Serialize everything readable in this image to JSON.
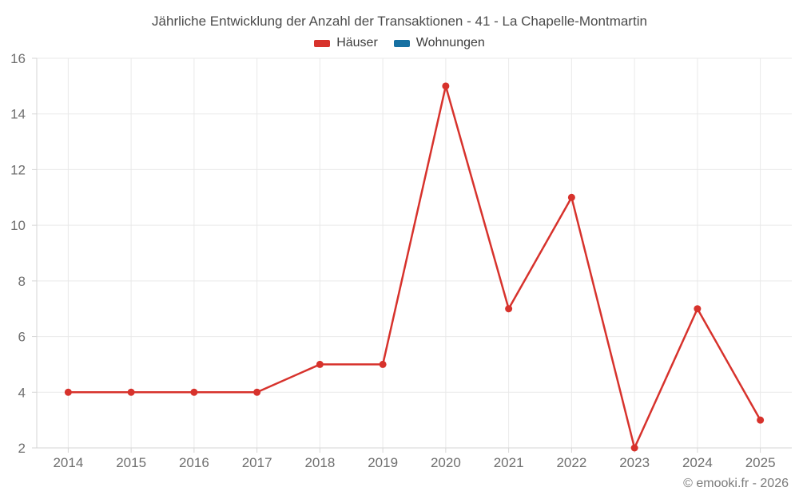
{
  "footer": "© emooki.fr - 2026",
  "chart_data": {
    "type": "line",
    "title": "Jährliche Entwicklung der Anzahl der Transaktionen - 41 - La Chapelle-Montmartin",
    "categories": [
      "2014",
      "2015",
      "2016",
      "2017",
      "2018",
      "2019",
      "2020",
      "2021",
      "2022",
      "2023",
      "2024",
      "2025"
    ],
    "series": [
      {
        "name": "Häuser",
        "color": "#d7322c",
        "values": [
          4,
          4,
          4,
          4,
          5,
          5,
          15,
          7,
          11,
          2,
          7,
          3
        ]
      },
      {
        "name": "Wohnungen",
        "color": "#1670a2",
        "values": []
      }
    ],
    "xlabel": "",
    "ylabel": "",
    "ylim": [
      2,
      16
    ],
    "ytick_step": 2,
    "grid": true,
    "legend_position": "top",
    "colors": {
      "gridline": "#e9e9e9",
      "axis_line": "#d6d6d6",
      "tick_label": "#6f6f6f",
      "title_text": "#4b4b4b",
      "footer_text": "#7b7b7b"
    }
  }
}
